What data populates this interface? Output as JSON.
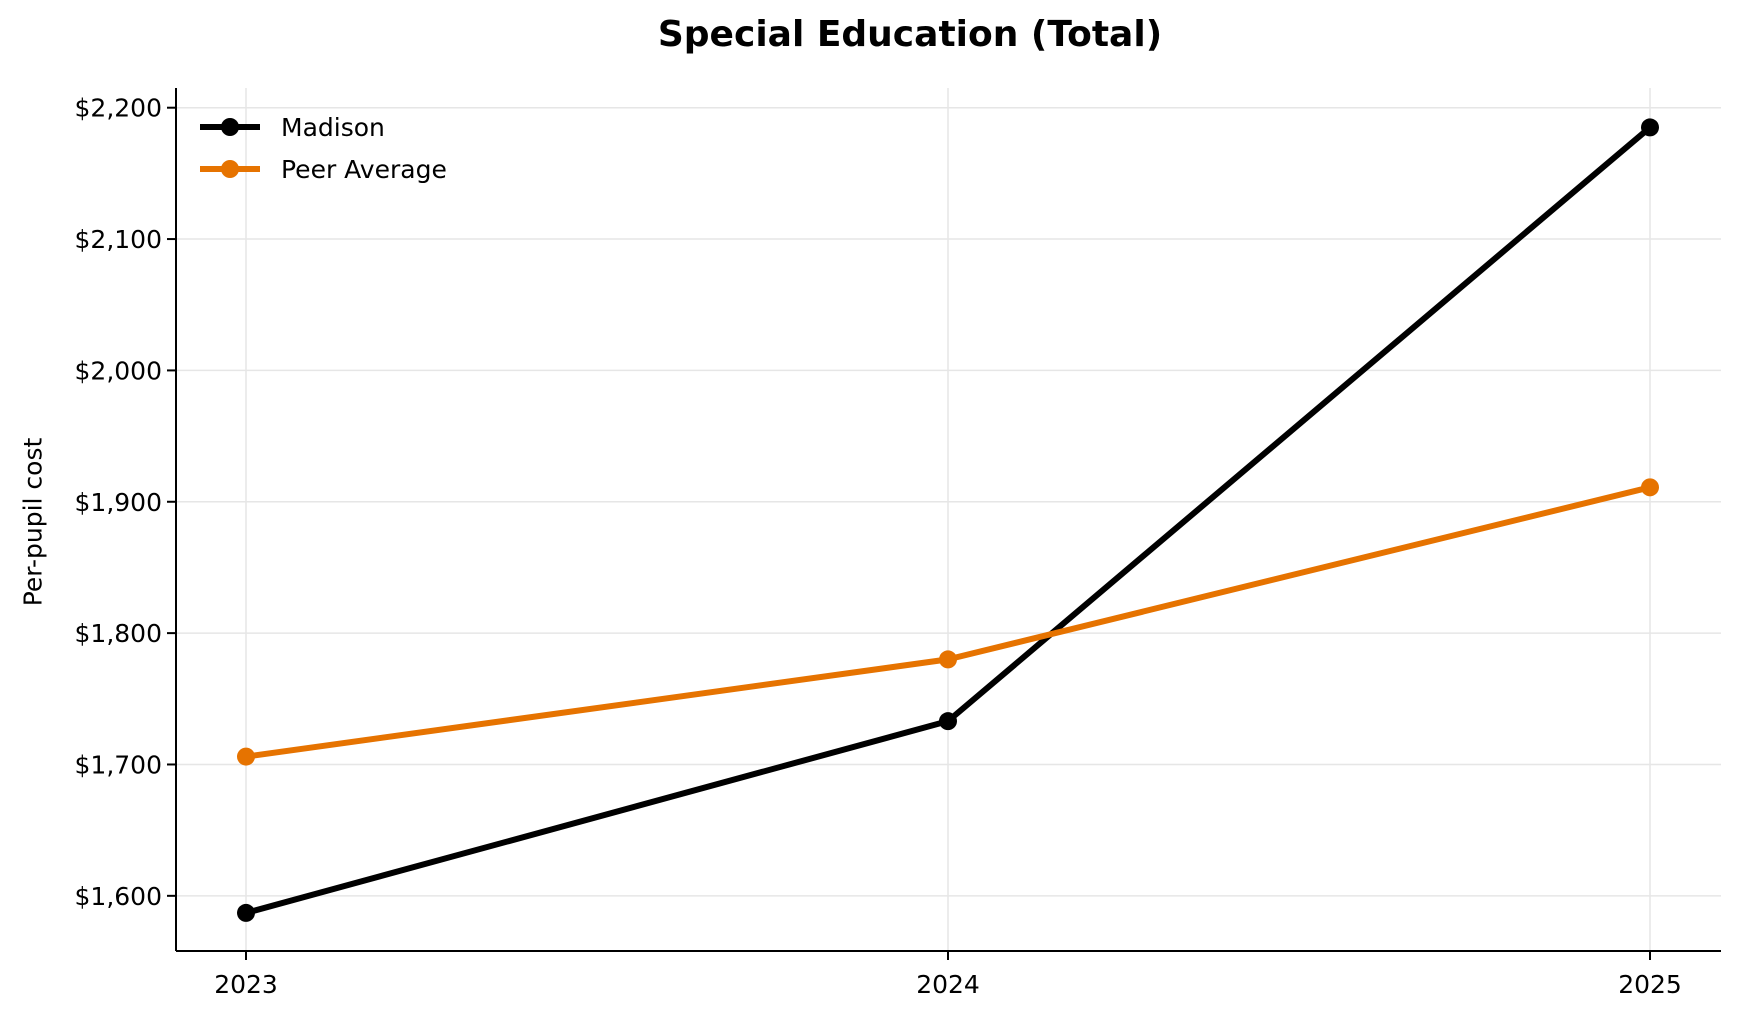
{
  "chart_data": {
    "type": "line",
    "title": "Special Education (Total)",
    "xlabel": "",
    "ylabel": "Per-pupil cost",
    "categories": [
      "2023",
      "2024",
      "2025"
    ],
    "series": [
      {
        "name": "Madison",
        "color": "#000000",
        "values": [
          1587,
          1733,
          2185
        ]
      },
      {
        "name": "Peer Average",
        "color": "#E67300",
        "values": [
          1706,
          1780,
          1911
        ]
      }
    ],
    "yticks": [
      1600,
      1700,
      1800,
      1900,
      2000,
      2100,
      2200
    ],
    "ytick_labels": [
      "$1,600",
      "$1,700",
      "$1,800",
      "$1,900",
      "$2,000",
      "$2,100",
      "$2,200"
    ],
    "ylim": [
      1558,
      2215
    ],
    "grid": true,
    "legend_position": "upper left"
  }
}
